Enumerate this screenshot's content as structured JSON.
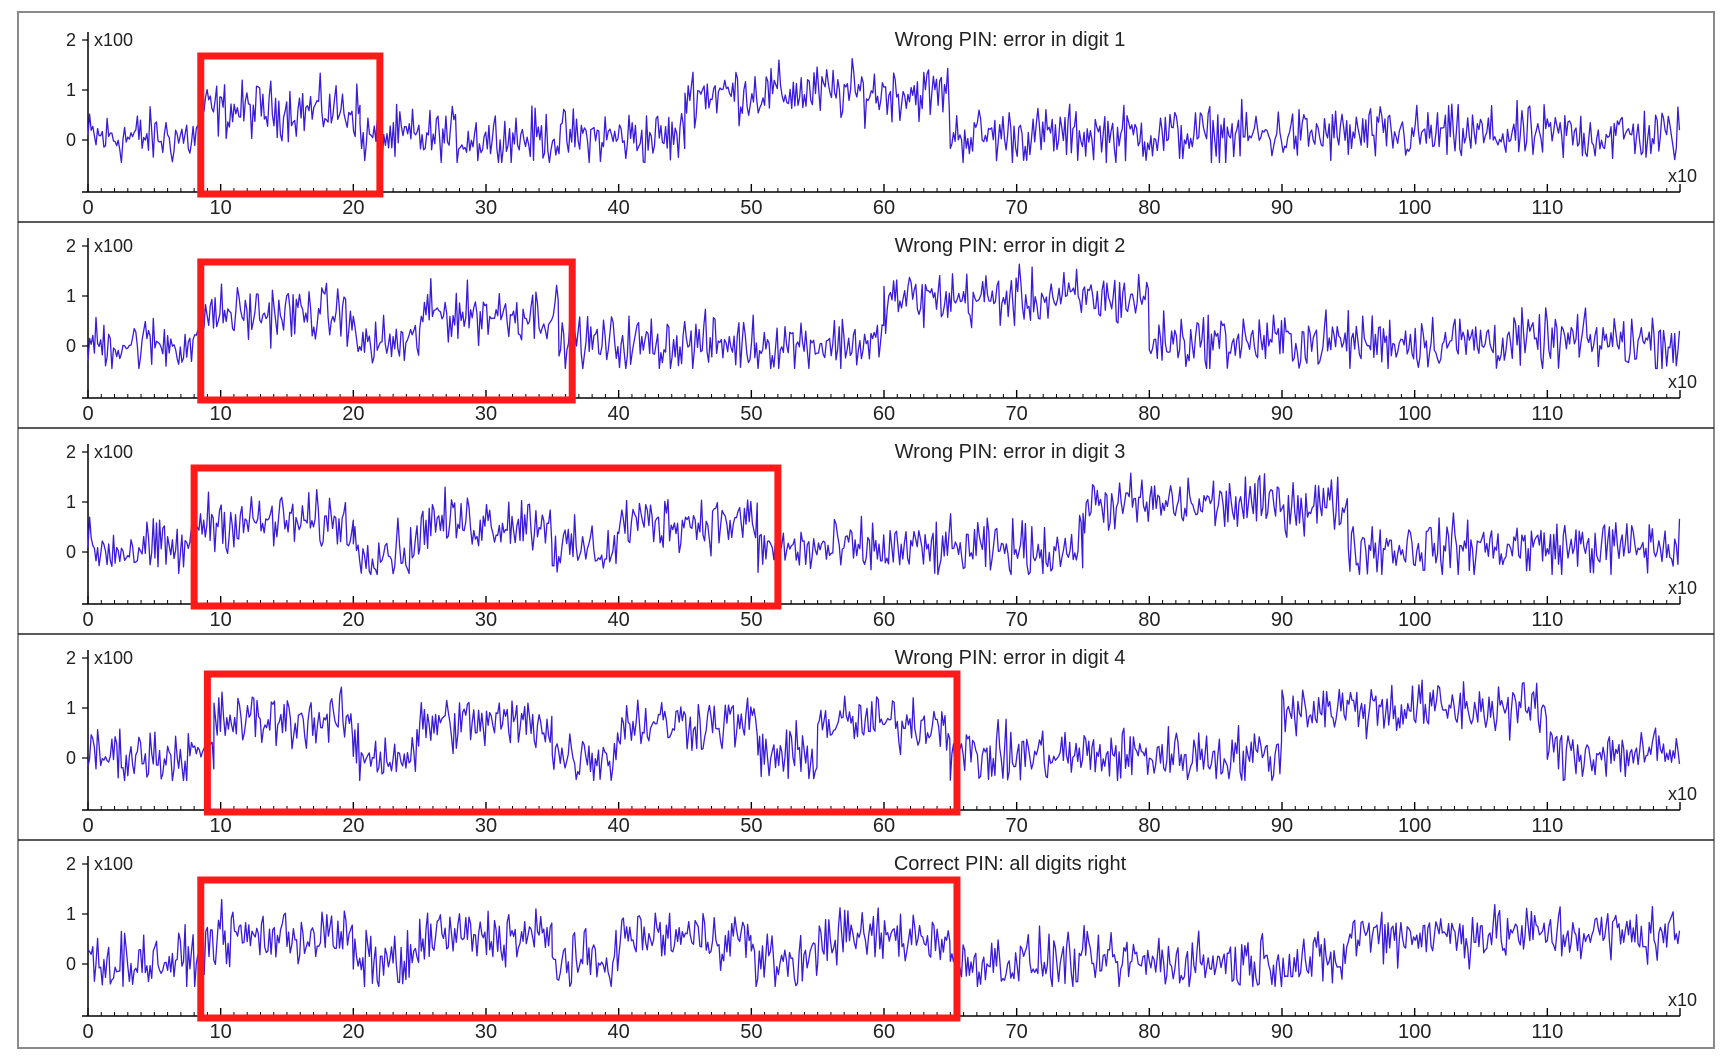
{
  "figure": {
    "line_color": "#3a1bd6",
    "highlight_color": "#ff1a1a",
    "axis_color": "#000000",
    "x_range": [
      0,
      120
    ],
    "x_ticks": [
      "0",
      "10",
      "20",
      "30",
      "40",
      "50",
      "60",
      "70",
      "80",
      "90",
      "100",
      "110"
    ],
    "y_ticks": [
      "2",
      "1",
      "0"
    ],
    "y_scale_label": "x100",
    "x_scale_label": "x10"
  },
  "chart_data": [
    {
      "type": "line",
      "title": "Wrong PIN: error in digit 1",
      "ylim": [
        -0.5,
        2
      ],
      "xlim": [
        0,
        120
      ],
      "baseline": 0.15,
      "segments": [
        {
          "x": [
            0,
            8.5
          ],
          "level": 0.05
        },
        {
          "x": [
            8.5,
            20.5
          ],
          "level": 0.6
        },
        {
          "x": [
            20.5,
            45
          ],
          "level": 0.05
        },
        {
          "x": [
            45,
            65
          ],
          "level": 0.95
        },
        {
          "x": [
            65,
            120
          ],
          "level": 0.1
        }
      ],
      "highlight_box": {
        "x": [
          8.5,
          22
        ],
        "label": ""
      }
    },
    {
      "type": "line",
      "title": "Wrong PIN: error in digit 2",
      "ylim": [
        -0.5,
        2
      ],
      "xlim": [
        0,
        120
      ],
      "segments": [
        {
          "x": [
            0,
            8.5
          ],
          "level": 0.05
        },
        {
          "x": [
            8.5,
            20
          ],
          "level": 0.65
        },
        {
          "x": [
            20,
            25
          ],
          "level": 0.05
        },
        {
          "x": [
            25,
            35.5
          ],
          "level": 0.65
        },
        {
          "x": [
            35.5,
            60
          ],
          "level": 0.05
        },
        {
          "x": [
            60,
            80
          ],
          "level": 0.95
        },
        {
          "x": [
            80,
            120
          ],
          "level": 0.1
        }
      ],
      "highlight_box": {
        "x": [
          8.5,
          36.5
        ],
        "label": ""
      }
    },
    {
      "type": "line",
      "title": "Wrong PIN: error in digit 3",
      "ylim": [
        -0.5,
        2
      ],
      "xlim": [
        0,
        120
      ],
      "segments": [
        {
          "x": [
            0,
            8
          ],
          "level": 0.05
        },
        {
          "x": [
            8,
            20
          ],
          "level": 0.6
        },
        {
          "x": [
            20,
            25
          ],
          "level": 0.05
        },
        {
          "x": [
            25,
            35
          ],
          "level": 0.6
        },
        {
          "x": [
            35,
            40
          ],
          "level": 0.05
        },
        {
          "x": [
            40,
            50.5
          ],
          "level": 0.6
        },
        {
          "x": [
            50.5,
            75
          ],
          "level": 0.05
        },
        {
          "x": [
            75,
            95
          ],
          "level": 0.95
        },
        {
          "x": [
            95,
            120
          ],
          "level": 0.1
        }
      ],
      "highlight_box": {
        "x": [
          8,
          52
        ],
        "label": ""
      }
    },
    {
      "type": "line",
      "title": "Wrong PIN: error in digit 4",
      "ylim": [
        -0.5,
        2
      ],
      "xlim": [
        0,
        120
      ],
      "segments": [
        {
          "x": [
            0,
            9.5
          ],
          "level": 0.05
        },
        {
          "x": [
            9.5,
            20
          ],
          "level": 0.75
        },
        {
          "x": [
            20,
            25
          ],
          "level": 0.05
        },
        {
          "x": [
            25,
            35
          ],
          "level": 0.7
        },
        {
          "x": [
            35,
            40
          ],
          "level": 0.05
        },
        {
          "x": [
            40,
            50.5
          ],
          "level": 0.7
        },
        {
          "x": [
            50.5,
            55
          ],
          "level": 0.05
        },
        {
          "x": [
            55,
            65
          ],
          "level": 0.7
        },
        {
          "x": [
            65,
            90
          ],
          "level": 0.05
        },
        {
          "x": [
            90,
            110
          ],
          "level": 1.0
        },
        {
          "x": [
            110,
            120
          ],
          "level": 0.1
        }
      ],
      "highlight_box": {
        "x": [
          9,
          65.5
        ],
        "label": ""
      }
    },
    {
      "type": "line",
      "title": "Correct PIN: all digits right",
      "ylim": [
        -0.5,
        2
      ],
      "xlim": [
        0,
        120
      ],
      "segments": [
        {
          "x": [
            0,
            9
          ],
          "level": 0.05
        },
        {
          "x": [
            9,
            20
          ],
          "level": 0.55
        },
        {
          "x": [
            20,
            25
          ],
          "level": 0.05
        },
        {
          "x": [
            25,
            35
          ],
          "level": 0.55
        },
        {
          "x": [
            35,
            40
          ],
          "level": 0.05
        },
        {
          "x": [
            40,
            50
          ],
          "level": 0.55
        },
        {
          "x": [
            50,
            55
          ],
          "level": 0.05
        },
        {
          "x": [
            55,
            65
          ],
          "level": 0.55
        },
        {
          "x": [
            65,
            95
          ],
          "level": 0.05
        },
        {
          "x": [
            95,
            120
          ],
          "level": 0.6
        }
      ],
      "highlight_box": {
        "x": [
          8.5,
          65.5
        ],
        "label": ""
      }
    }
  ]
}
